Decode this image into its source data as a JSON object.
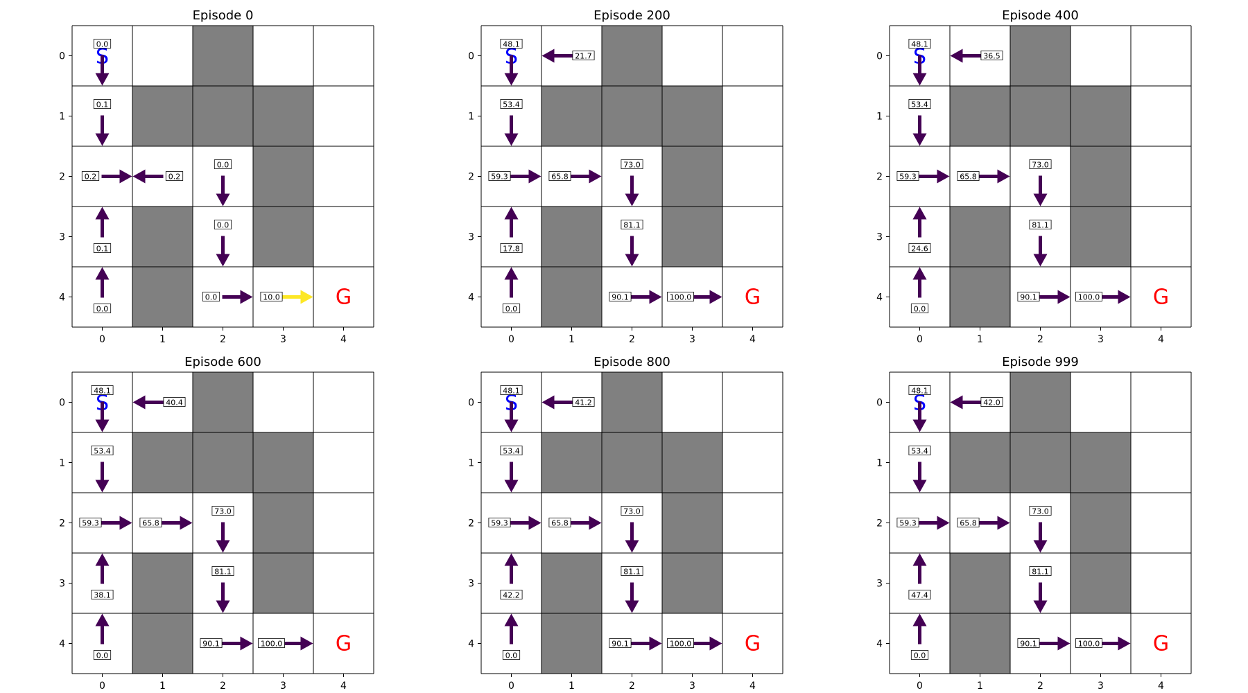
{
  "chart_data": {
    "type": "heatmap",
    "grid_size": 5,
    "walls": [
      [
        0,
        2
      ],
      [
        1,
        1
      ],
      [
        1,
        2
      ],
      [
        1,
        3
      ],
      [
        2,
        3
      ],
      [
        3,
        1
      ],
      [
        3,
        3
      ],
      [
        4,
        1
      ]
    ],
    "start": {
      "row": 0,
      "col": 0,
      "label": "S"
    },
    "goal": {
      "row": 4,
      "col": 4,
      "label": "G"
    },
    "x_ticks": [
      "0",
      "1",
      "2",
      "3",
      "4"
    ],
    "y_ticks": [
      "0",
      "1",
      "2",
      "3",
      "4"
    ],
    "colors": {
      "wall": "#808080",
      "cell": "#ffffff",
      "arrow": "#440154",
      "arrow_high": "#fde725",
      "start": "#0000ff",
      "goal": "#ff0000",
      "line": "#000000"
    },
    "panels": [
      {
        "title": "Episode 0",
        "cells": [
          {
            "r": 0,
            "c": 0,
            "v": "0.0",
            "dir": "down",
            "color": "#440154"
          },
          {
            "r": 1,
            "c": 0,
            "v": "0.1",
            "dir": "down",
            "color": "#440154"
          },
          {
            "r": 2,
            "c": 0,
            "v": "0.2",
            "dir": "right",
            "color": "#440154"
          },
          {
            "r": 2,
            "c": 1,
            "v": "0.2",
            "dir": "left",
            "color": "#440154"
          },
          {
            "r": 2,
            "c": 2,
            "v": "0.0",
            "dir": "down",
            "color": "#440154"
          },
          {
            "r": 3,
            "c": 0,
            "v": "0.1",
            "dir": "up",
            "color": "#440154"
          },
          {
            "r": 3,
            "c": 2,
            "v": "0.0",
            "dir": "down",
            "color": "#440154"
          },
          {
            "r": 4,
            "c": 0,
            "v": "0.0",
            "dir": "up",
            "color": "#440154"
          },
          {
            "r": 4,
            "c": 2,
            "v": "0.0",
            "dir": "right",
            "color": "#440154"
          },
          {
            "r": 4,
            "c": 3,
            "v": "10.0",
            "dir": "right",
            "color": "#fde725"
          }
        ]
      },
      {
        "title": "Episode 200",
        "cells": [
          {
            "r": 0,
            "c": 0,
            "v": "48.1",
            "dir": "down",
            "color": "#440154"
          },
          {
            "r": 0,
            "c": 1,
            "v": "21.7",
            "dir": "left",
            "color": "#440154"
          },
          {
            "r": 1,
            "c": 0,
            "v": "53.4",
            "dir": "down",
            "color": "#440154"
          },
          {
            "r": 2,
            "c": 0,
            "v": "59.3",
            "dir": "right",
            "color": "#440154"
          },
          {
            "r": 2,
            "c": 1,
            "v": "65.8",
            "dir": "right",
            "color": "#440154"
          },
          {
            "r": 2,
            "c": 2,
            "v": "73.0",
            "dir": "down",
            "color": "#440154"
          },
          {
            "r": 3,
            "c": 0,
            "v": "17.8",
            "dir": "up",
            "color": "#440154"
          },
          {
            "r": 3,
            "c": 2,
            "v": "81.1",
            "dir": "down",
            "color": "#440154"
          },
          {
            "r": 4,
            "c": 0,
            "v": "0.0",
            "dir": "up",
            "color": "#440154"
          },
          {
            "r": 4,
            "c": 2,
            "v": "90.1",
            "dir": "right",
            "color": "#440154"
          },
          {
            "r": 4,
            "c": 3,
            "v": "100.0",
            "dir": "right",
            "color": "#440154"
          }
        ]
      },
      {
        "title": "Episode 400",
        "cells": [
          {
            "r": 0,
            "c": 0,
            "v": "48.1",
            "dir": "down",
            "color": "#440154"
          },
          {
            "r": 0,
            "c": 1,
            "v": "36.5",
            "dir": "left",
            "color": "#440154"
          },
          {
            "r": 1,
            "c": 0,
            "v": "53.4",
            "dir": "down",
            "color": "#440154"
          },
          {
            "r": 2,
            "c": 0,
            "v": "59.3",
            "dir": "right",
            "color": "#440154"
          },
          {
            "r": 2,
            "c": 1,
            "v": "65.8",
            "dir": "right",
            "color": "#440154"
          },
          {
            "r": 2,
            "c": 2,
            "v": "73.0",
            "dir": "down",
            "color": "#440154"
          },
          {
            "r": 3,
            "c": 0,
            "v": "24.6",
            "dir": "up",
            "color": "#440154"
          },
          {
            "r": 3,
            "c": 2,
            "v": "81.1",
            "dir": "down",
            "color": "#440154"
          },
          {
            "r": 4,
            "c": 0,
            "v": "0.0",
            "dir": "up",
            "color": "#440154"
          },
          {
            "r": 4,
            "c": 2,
            "v": "90.1",
            "dir": "right",
            "color": "#440154"
          },
          {
            "r": 4,
            "c": 3,
            "v": "100.0",
            "dir": "right",
            "color": "#440154"
          }
        ]
      },
      {
        "title": "Episode 600",
        "cells": [
          {
            "r": 0,
            "c": 0,
            "v": "48.1",
            "dir": "down",
            "color": "#440154"
          },
          {
            "r": 0,
            "c": 1,
            "v": "40.4",
            "dir": "left",
            "color": "#440154"
          },
          {
            "r": 1,
            "c": 0,
            "v": "53.4",
            "dir": "down",
            "color": "#440154"
          },
          {
            "r": 2,
            "c": 0,
            "v": "59.3",
            "dir": "right",
            "color": "#440154"
          },
          {
            "r": 2,
            "c": 1,
            "v": "65.8",
            "dir": "right",
            "color": "#440154"
          },
          {
            "r": 2,
            "c": 2,
            "v": "73.0",
            "dir": "down",
            "color": "#440154"
          },
          {
            "r": 3,
            "c": 0,
            "v": "38.1",
            "dir": "up",
            "color": "#440154"
          },
          {
            "r": 3,
            "c": 2,
            "v": "81.1",
            "dir": "down",
            "color": "#440154"
          },
          {
            "r": 4,
            "c": 0,
            "v": "0.0",
            "dir": "up",
            "color": "#440154"
          },
          {
            "r": 4,
            "c": 2,
            "v": "90.1",
            "dir": "right",
            "color": "#440154"
          },
          {
            "r": 4,
            "c": 3,
            "v": "100.0",
            "dir": "right",
            "color": "#440154"
          }
        ]
      },
      {
        "title": "Episode 800",
        "cells": [
          {
            "r": 0,
            "c": 0,
            "v": "48.1",
            "dir": "down",
            "color": "#440154"
          },
          {
            "r": 0,
            "c": 1,
            "v": "41.2",
            "dir": "left",
            "color": "#440154"
          },
          {
            "r": 1,
            "c": 0,
            "v": "53.4",
            "dir": "down",
            "color": "#440154"
          },
          {
            "r": 2,
            "c": 0,
            "v": "59.3",
            "dir": "right",
            "color": "#440154"
          },
          {
            "r": 2,
            "c": 1,
            "v": "65.8",
            "dir": "right",
            "color": "#440154"
          },
          {
            "r": 2,
            "c": 2,
            "v": "73.0",
            "dir": "down",
            "color": "#440154"
          },
          {
            "r": 3,
            "c": 0,
            "v": "42.2",
            "dir": "up",
            "color": "#440154"
          },
          {
            "r": 3,
            "c": 2,
            "v": "81.1",
            "dir": "down",
            "color": "#440154"
          },
          {
            "r": 4,
            "c": 0,
            "v": "0.0",
            "dir": "up",
            "color": "#440154"
          },
          {
            "r": 4,
            "c": 2,
            "v": "90.1",
            "dir": "right",
            "color": "#440154"
          },
          {
            "r": 4,
            "c": 3,
            "v": "100.0",
            "dir": "right",
            "color": "#440154"
          }
        ]
      },
      {
        "title": "Episode 999",
        "cells": [
          {
            "r": 0,
            "c": 0,
            "v": "48.1",
            "dir": "down",
            "color": "#440154"
          },
          {
            "r": 0,
            "c": 1,
            "v": "42.0",
            "dir": "left",
            "color": "#440154"
          },
          {
            "r": 1,
            "c": 0,
            "v": "53.4",
            "dir": "down",
            "color": "#440154"
          },
          {
            "r": 2,
            "c": 0,
            "v": "59.3",
            "dir": "right",
            "color": "#440154"
          },
          {
            "r": 2,
            "c": 1,
            "v": "65.8",
            "dir": "right",
            "color": "#440154"
          },
          {
            "r": 2,
            "c": 2,
            "v": "73.0",
            "dir": "down",
            "color": "#440154"
          },
          {
            "r": 3,
            "c": 0,
            "v": "47.4",
            "dir": "up",
            "color": "#440154"
          },
          {
            "r": 3,
            "c": 2,
            "v": "81.1",
            "dir": "down",
            "color": "#440154"
          },
          {
            "r": 4,
            "c": 0,
            "v": "0.0",
            "dir": "up",
            "color": "#440154"
          },
          {
            "r": 4,
            "c": 2,
            "v": "90.1",
            "dir": "right",
            "color": "#440154"
          },
          {
            "r": 4,
            "c": 3,
            "v": "100.0",
            "dir": "right",
            "color": "#440154"
          }
        ]
      }
    ]
  }
}
